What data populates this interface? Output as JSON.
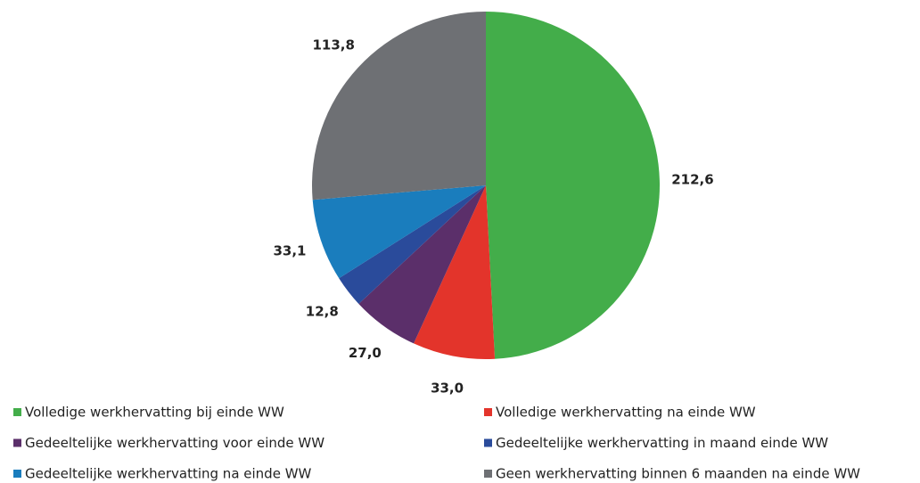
{
  "chart_data": {
    "type": "pie",
    "categories": [
      "Volledige werkhervatting bij einde WW",
      "Volledige werkhervatting na einde WW",
      "Gedeeltelijke werkhervatting voor einde WW",
      "Gedeeltelijke werkhervatting in maand einde WW",
      "Gedeeltelijke werkhervatting na einde WW",
      "Geen werkhervatting binnen 6 maanden na einde WW"
    ],
    "values": [
      212.6,
      33.0,
      27.0,
      12.8,
      33.1,
      113.8
    ],
    "value_labels": [
      "212,6",
      "33,0",
      "27,0",
      "12,8",
      "33,1",
      "113,8"
    ],
    "colors": [
      "#43ad4a",
      "#e3342b",
      "#5b2f6a",
      "#2a4b9b",
      "#1a7dbd",
      "#6e7074"
    ],
    "legend": "bottom"
  }
}
